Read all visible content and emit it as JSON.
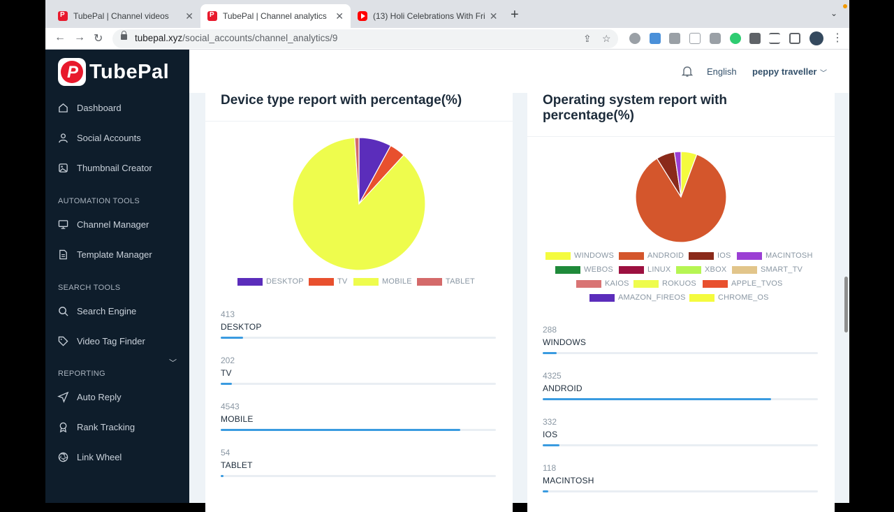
{
  "browser": {
    "tabs": [
      {
        "title": "TubePal | Channel videos",
        "favicon": "tubepal-icon"
      },
      {
        "title": "TubePal | Channel analytics",
        "favicon": "tubepal-icon"
      },
      {
        "title": "(13) Holi Celebrations With Fri",
        "favicon": "youtube-icon"
      }
    ],
    "url_host": "tubepal.xyz",
    "url_path": "/social_accounts/channel_analytics/9"
  },
  "app": {
    "brand": "TubePal",
    "sidebar": {
      "items": [
        {
          "label": "Dashboard",
          "icon": "home-icon"
        },
        {
          "label": "Social Accounts",
          "icon": "user-icon"
        },
        {
          "label": "Thumbnail Creator",
          "icon": "image-icon"
        }
      ],
      "sections": [
        {
          "title": "AUTOMATION TOOLS",
          "items": [
            {
              "label": "Channel Manager",
              "icon": "monitor-icon"
            },
            {
              "label": "Template Manager",
              "icon": "file-icon"
            }
          ]
        },
        {
          "title": "SEARCH TOOLS",
          "items": [
            {
              "label": "Search Engine",
              "icon": "search-icon"
            },
            {
              "label": "Video Tag Finder",
              "icon": "tag-icon"
            }
          ]
        },
        {
          "title": "REPORTING",
          "items": [
            {
              "label": "Auto Reply",
              "icon": "send-icon"
            },
            {
              "label": "Rank Tracking",
              "icon": "award-icon"
            },
            {
              "label": "Link Wheel",
              "icon": "aperture-icon"
            }
          ]
        }
      ]
    },
    "header": {
      "language": "English",
      "user": "peppy traveller"
    }
  },
  "device_card": {
    "title": "Device type report with percentage(%)",
    "legend": [
      "DESKTOP",
      "TV",
      "MOBILE",
      "TABLET"
    ],
    "stats": [
      {
        "value": "413",
        "label": "DESKTOP",
        "fraction": 0.08
      },
      {
        "value": "202",
        "label": "TV",
        "fraction": 0.04
      },
      {
        "value": "4543",
        "label": "MOBILE",
        "fraction": 0.87
      },
      {
        "value": "54",
        "label": "TABLET",
        "fraction": 0.01
      }
    ]
  },
  "os_card": {
    "title_line1": "Operating system report with",
    "title_line2": "percentage(%)",
    "legend": [
      "WINDOWS",
      "ANDROID",
      "IOS",
      "MACINTOSH",
      "WEBOS",
      "LINUX",
      "XBOX",
      "SMART_TV",
      "KAIOS",
      "ROKUOS",
      "APPLE_TVOS",
      "AMAZON_FIREOS",
      "CHROME_OS"
    ],
    "stats": [
      {
        "value": "288",
        "label": "WINDOWS",
        "fraction": 0.05
      },
      {
        "value": "4325",
        "label": "ANDROID",
        "fraction": 0.83
      },
      {
        "value": "332",
        "label": "IOS",
        "fraction": 0.06
      },
      {
        "value": "118",
        "label": "MACINTOSH",
        "fraction": 0.02
      }
    ]
  },
  "chart_data": [
    {
      "type": "pie",
      "categories": [
        "DESKTOP",
        "TV",
        "MOBILE",
        "TABLET"
      ],
      "values": [
        413,
        202,
        4543,
        54
      ],
      "colors": [
        "#5b2dbb",
        "#e8502e",
        "#eefc4d",
        "#d46a6a"
      ]
    },
    {
      "type": "pie",
      "categories": [
        "WINDOWS",
        "ANDROID",
        "IOS",
        "MACINTOSH",
        "WEBOS",
        "LINUX",
        "XBOX",
        "SMART_TV",
        "KAIOS",
        "ROKUOS",
        "APPLE_TVOS",
        "AMAZON_FIREOS",
        "CHROME_OS"
      ],
      "values": [
        288,
        4325,
        332,
        118,
        0,
        0,
        0,
        0,
        0,
        0,
        0,
        0,
        0
      ],
      "colors": [
        "#f4fb3e",
        "#d4562c",
        "#8a2a1a",
        "#9b3fd4",
        "#1f8a3a",
        "#9c1040",
        "#b6f553",
        "#e2c58a",
        "#d97474",
        "#eefc4d",
        "#e8502e",
        "#5b2dbb",
        "#f4fb3e"
      ]
    }
  ]
}
